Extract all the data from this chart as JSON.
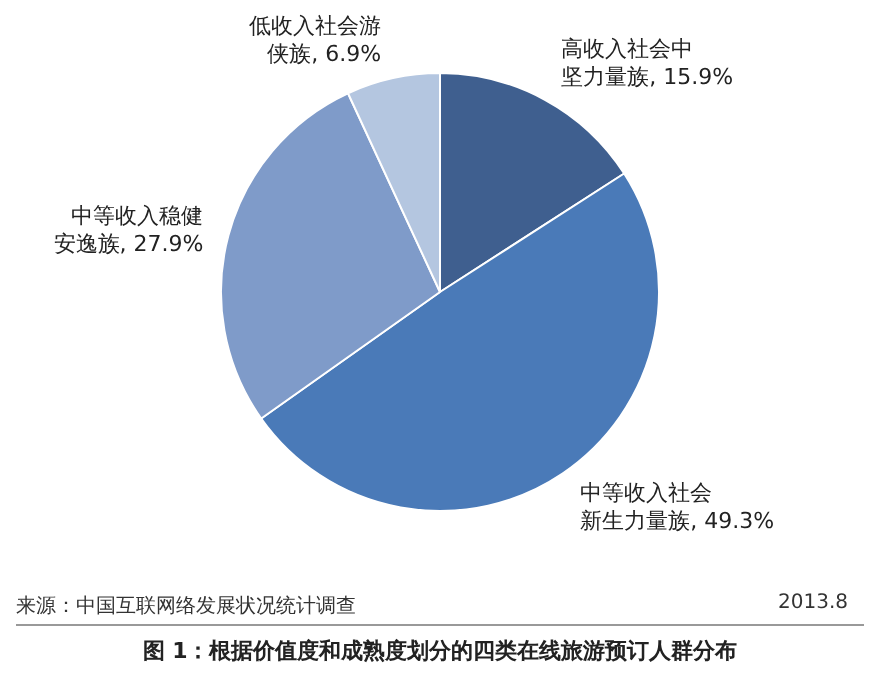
{
  "chart_data": {
    "type": "pie",
    "title": "图 1：根据价值度和成熟度划分的四类在线旅游预订人群分布",
    "categories": [
      "高收入社会中坚力量族",
      "中等收入社会新生力量族",
      "中等收入稳健安逸族",
      "低收入社会游侠族"
    ],
    "values": [
      15.9,
      49.3,
      27.9,
      6.9
    ],
    "value_labels": [
      "15.9%",
      "49.3%",
      "27.9%",
      "6.9%"
    ],
    "colors": [
      "#3f5f8f",
      "#4a7ab8",
      "#7f9bc9",
      "#b4c6e0"
    ],
    "legend": false,
    "annotations": [
      "来源：中国互联网络发展状况统计调查",
      "2013.8"
    ]
  }
}
